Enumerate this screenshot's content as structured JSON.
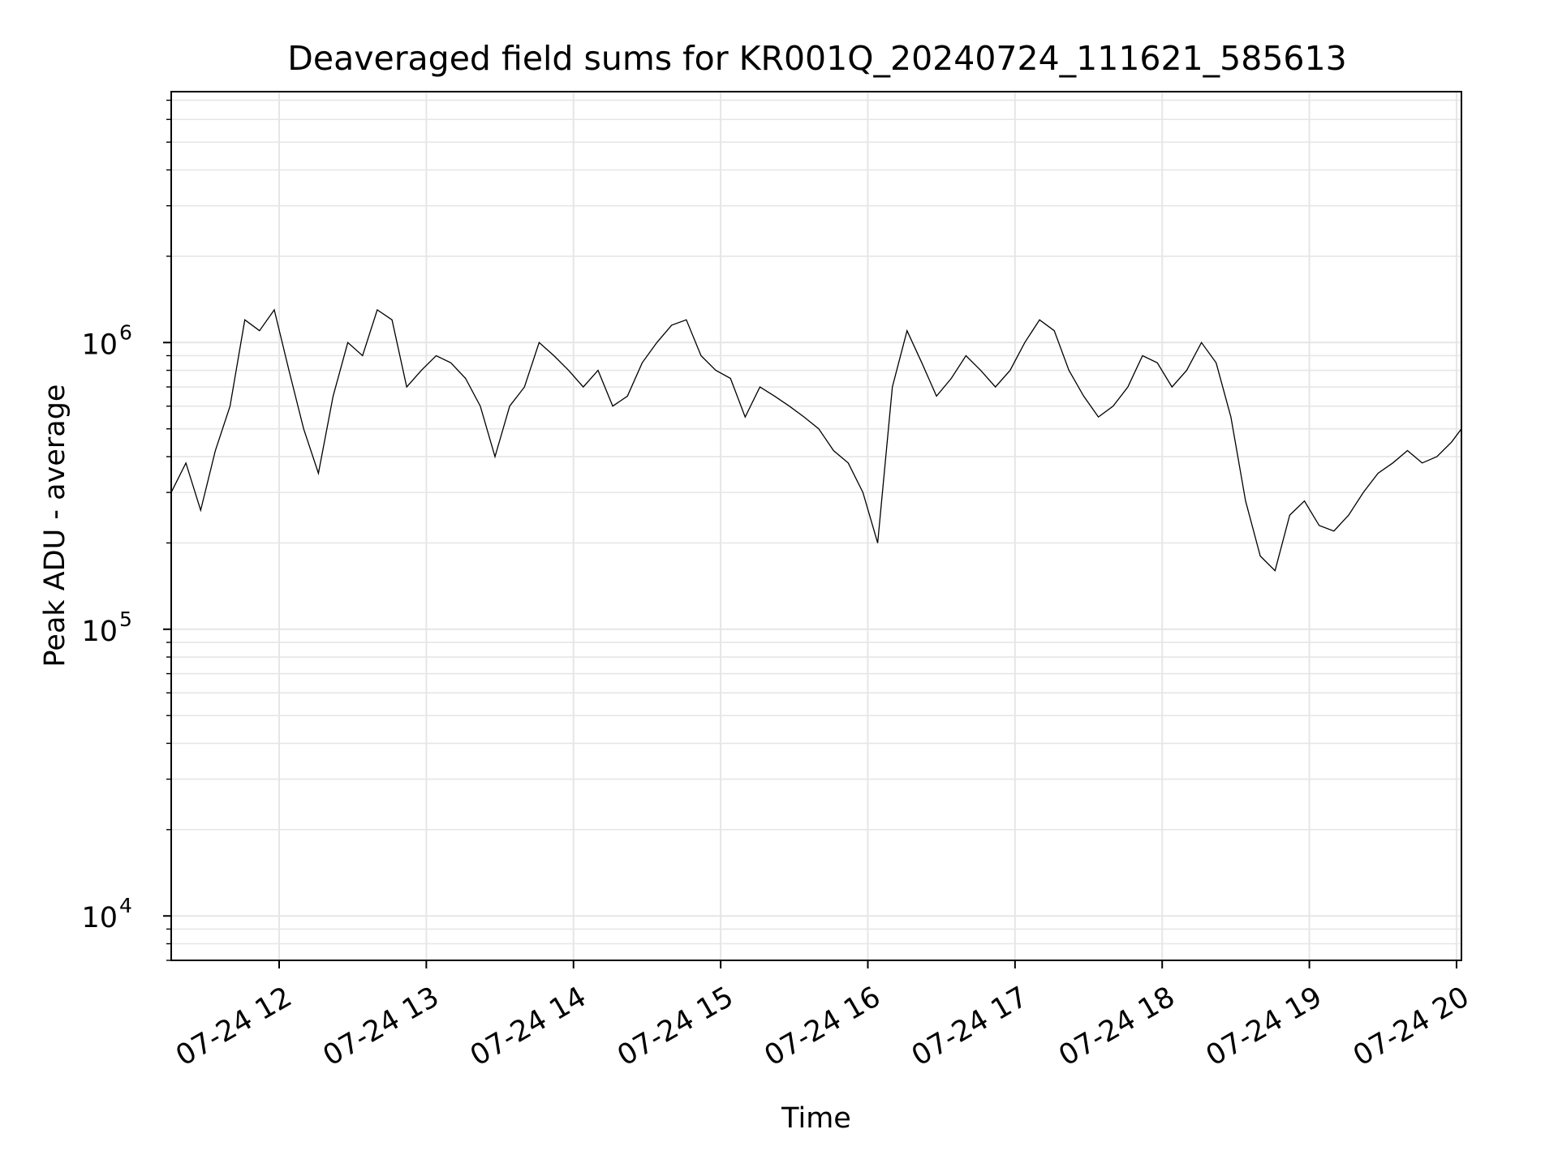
{
  "chart_data": {
    "type": "line",
    "title": "Deaveraged field sums for KR001Q_20240724_111621_585613",
    "xlabel": "Time",
    "ylabel": "Peak ADU - average",
    "yscale": "log",
    "ylim": [
      7000,
      7500000
    ],
    "xlim": [
      "2024-07-24 11:16",
      "2024-07-24 20:02"
    ],
    "grid": true,
    "line_color": "#000000",
    "x_ticks": [
      {
        "x": "2024-07-24 12:00",
        "label": "07-24 12"
      },
      {
        "x": "2024-07-24 13:00",
        "label": "07-24 13"
      },
      {
        "x": "2024-07-24 14:00",
        "label": "07-24 14"
      },
      {
        "x": "2024-07-24 15:00",
        "label": "07-24 15"
      },
      {
        "x": "2024-07-24 16:00",
        "label": "07-24 16"
      },
      {
        "x": "2024-07-24 17:00",
        "label": "07-24 17"
      },
      {
        "x": "2024-07-24 18:00",
        "label": "07-24 18"
      },
      {
        "x": "2024-07-24 19:00",
        "label": "07-24 19"
      },
      {
        "x": "2024-07-24 20:00",
        "label": "07-24 20"
      }
    ],
    "y_ticks": [
      {
        "value": 10000,
        "base": "10",
        "exp": "4"
      },
      {
        "value": 100000,
        "base": "10",
        "exp": "5"
      },
      {
        "value": 1000000,
        "base": "10",
        "exp": "6"
      }
    ],
    "series": [
      {
        "points": [
          [
            "2024-07-24 11:16",
            300000
          ],
          [
            "2024-07-24 11:22",
            380000
          ],
          [
            "2024-07-24 11:28",
            260000
          ],
          [
            "2024-07-24 11:34",
            420000
          ],
          [
            "2024-07-24 11:40",
            600000
          ],
          [
            "2024-07-24 11:46",
            1200000
          ],
          [
            "2024-07-24 11:52",
            1100000
          ],
          [
            "2024-07-24 11:58",
            1300000
          ],
          [
            "2024-07-24 12:04",
            800000
          ],
          [
            "2024-07-24 12:10",
            500000
          ],
          [
            "2024-07-24 12:16",
            350000
          ],
          [
            "2024-07-24 12:22",
            650000
          ],
          [
            "2024-07-24 12:28",
            1000000
          ],
          [
            "2024-07-24 12:34",
            900000
          ],
          [
            "2024-07-24 12:40",
            1300000
          ],
          [
            "2024-07-24 12:46",
            1200000
          ],
          [
            "2024-07-24 12:52",
            700000
          ],
          [
            "2024-07-24 12:58",
            800000
          ],
          [
            "2024-07-24 13:04",
            900000
          ],
          [
            "2024-07-24 13:10",
            850000
          ],
          [
            "2024-07-24 13:16",
            750000
          ],
          [
            "2024-07-24 13:22",
            600000
          ],
          [
            "2024-07-24 13:28",
            400000
          ],
          [
            "2024-07-24 13:34",
            600000
          ],
          [
            "2024-07-24 13:40",
            700000
          ],
          [
            "2024-07-24 13:46",
            1000000
          ],
          [
            "2024-07-24 13:52",
            900000
          ],
          [
            "2024-07-24 13:58",
            800000
          ],
          [
            "2024-07-24 14:04",
            700000
          ],
          [
            "2024-07-24 14:10",
            800000
          ],
          [
            "2024-07-24 14:16",
            600000
          ],
          [
            "2024-07-24 14:22",
            650000
          ],
          [
            "2024-07-24 14:28",
            850000
          ],
          [
            "2024-07-24 14:34",
            1000000
          ],
          [
            "2024-07-24 14:40",
            1150000
          ],
          [
            "2024-07-24 14:46",
            1200000
          ],
          [
            "2024-07-24 14:52",
            900000
          ],
          [
            "2024-07-24 14:58",
            800000
          ],
          [
            "2024-07-24 15:04",
            750000
          ],
          [
            "2024-07-24 15:10",
            550000
          ],
          [
            "2024-07-24 15:16",
            700000
          ],
          [
            "2024-07-24 15:22",
            650000
          ],
          [
            "2024-07-24 15:28",
            600000
          ],
          [
            "2024-07-24 15:34",
            550000
          ],
          [
            "2024-07-24 15:40",
            500000
          ],
          [
            "2024-07-24 15:46",
            420000
          ],
          [
            "2024-07-24 15:52",
            380000
          ],
          [
            "2024-07-24 15:58",
            300000
          ],
          [
            "2024-07-24 16:04",
            200000
          ],
          [
            "2024-07-24 16:10",
            700000
          ],
          [
            "2024-07-24 16:16",
            1100000
          ],
          [
            "2024-07-24 16:22",
            850000
          ],
          [
            "2024-07-24 16:28",
            650000
          ],
          [
            "2024-07-24 16:34",
            750000
          ],
          [
            "2024-07-24 16:40",
            900000
          ],
          [
            "2024-07-24 16:46",
            800000
          ],
          [
            "2024-07-24 16:52",
            700000
          ],
          [
            "2024-07-24 16:58",
            800000
          ],
          [
            "2024-07-24 17:04",
            1000000
          ],
          [
            "2024-07-24 17:10",
            1200000
          ],
          [
            "2024-07-24 17:16",
            1100000
          ],
          [
            "2024-07-24 17:22",
            800000
          ],
          [
            "2024-07-24 17:28",
            650000
          ],
          [
            "2024-07-24 17:34",
            550000
          ],
          [
            "2024-07-24 17:40",
            600000
          ],
          [
            "2024-07-24 17:46",
            700000
          ],
          [
            "2024-07-24 17:52",
            900000
          ],
          [
            "2024-07-24 17:58",
            850000
          ],
          [
            "2024-07-24 18:04",
            700000
          ],
          [
            "2024-07-24 18:10",
            800000
          ],
          [
            "2024-07-24 18:16",
            1000000
          ],
          [
            "2024-07-24 18:22",
            850000
          ],
          [
            "2024-07-24 18:28",
            550000
          ],
          [
            "2024-07-24 18:34",
            280000
          ],
          [
            "2024-07-24 18:40",
            180000
          ],
          [
            "2024-07-24 18:46",
            160000
          ],
          [
            "2024-07-24 18:52",
            250000
          ],
          [
            "2024-07-24 18:58",
            280000
          ],
          [
            "2024-07-24 19:04",
            230000
          ],
          [
            "2024-07-24 19:10",
            220000
          ],
          [
            "2024-07-24 19:16",
            250000
          ],
          [
            "2024-07-24 19:22",
            300000
          ],
          [
            "2024-07-24 19:28",
            350000
          ],
          [
            "2024-07-24 19:34",
            380000
          ],
          [
            "2024-07-24 19:40",
            420000
          ],
          [
            "2024-07-24 19:46",
            380000
          ],
          [
            "2024-07-24 19:52",
            400000
          ],
          [
            "2024-07-24 19:58",
            450000
          ],
          [
            "2024-07-24 20:02",
            500000
          ]
        ]
      }
    ]
  }
}
